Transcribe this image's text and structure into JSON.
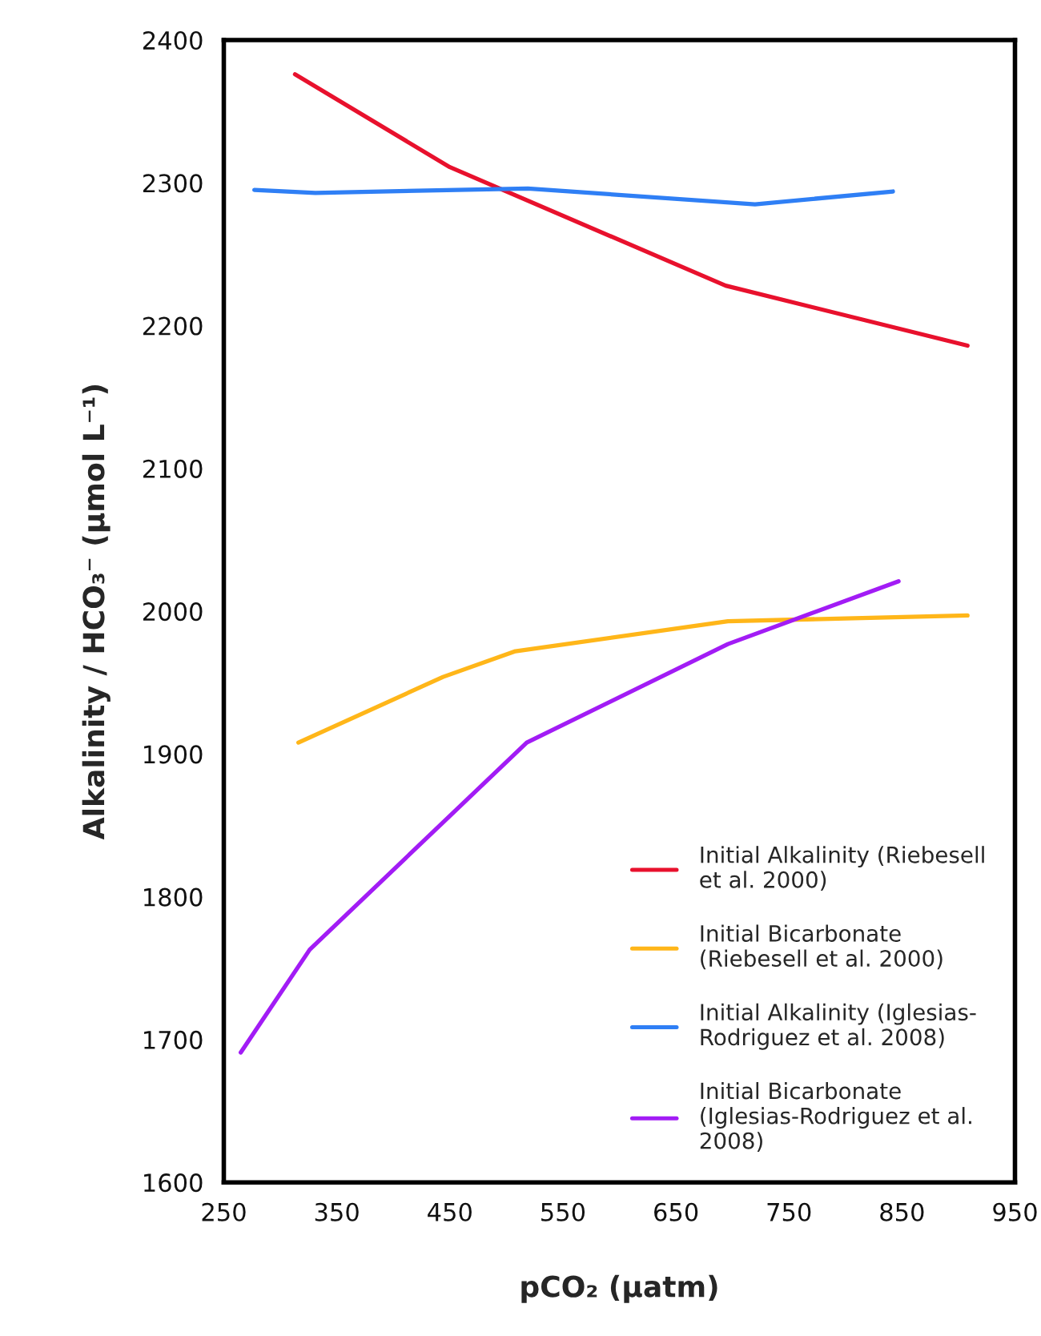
{
  "chart_data": {
    "type": "line",
    "xlabel": "pCO₂ (μatm)",
    "ylabel": "Alkalinity / HCO₃⁻ (μmol L⁻¹)",
    "xlim": [
      250,
      950
    ],
    "xticks": [
      250,
      350,
      450,
      550,
      650,
      750,
      850,
      950
    ],
    "ylim": [
      1600,
      2400
    ],
    "yticks": [
      1600,
      1700,
      1800,
      1900,
      2000,
      2100,
      2200,
      2300,
      2400
    ],
    "grid": false,
    "legend": "lower right",
    "marker": "none",
    "line_style": "solid",
    "series": [
      {
        "name": "Initial Alkalinity (Riebesell\net al. 2000)",
        "color": "#e8112d",
        "x": [
          313,
          450,
          694,
          908
        ],
        "values": [
          2376,
          2311,
          2228,
          2186
        ]
      },
      {
        "name": "Initial Bicarbonate\n(Riebesell et al. 2000)",
        "color": "#ffb619",
        "x": [
          316,
          444,
          508,
          696,
          908
        ],
        "values": [
          1908,
          1954,
          1972,
          1993,
          1997
        ]
      },
      {
        "name": "Initial Alkalinity (Iglesias-\nRodriguez et al. 2008)",
        "color": "#2f7ff5",
        "x": [
          277,
          331,
          519,
          720,
          842
        ],
        "values": [
          2295,
          2293,
          2296,
          2285,
          2294
        ]
      },
      {
        "name": "Initial Bicarbonate\n(Iglesias-Rodriguez et al.\n2008)",
        "color": "#a21cf5",
        "x": [
          265,
          326,
          518,
          696,
          847
        ],
        "values": [
          1691,
          1763,
          1908,
          1977,
          2021
        ]
      }
    ]
  }
}
